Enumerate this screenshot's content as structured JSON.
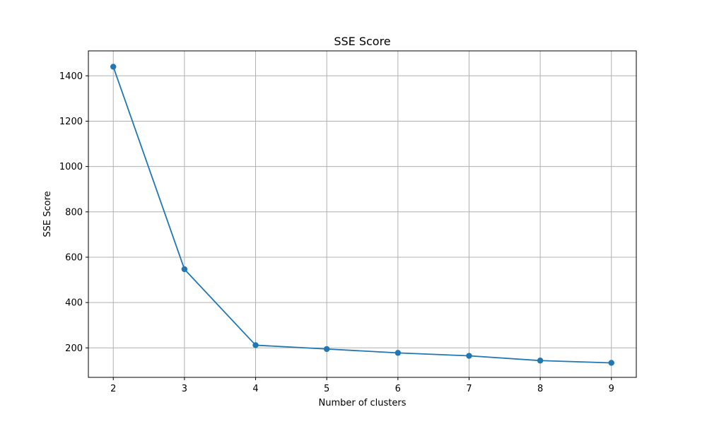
{
  "chart_data": {
    "type": "line",
    "title": "SSE Score",
    "xlabel": "Number of clusters",
    "ylabel": "SSE Score",
    "x": [
      2,
      3,
      4,
      5,
      6,
      7,
      8,
      9
    ],
    "series": [
      {
        "values": [
          1440,
          547,
          212,
          195,
          178,
          165,
          144,
          134
        ],
        "color": "#1f77b4",
        "marker": "circle"
      }
    ],
    "xlim": [
      1.65,
      9.35
    ],
    "ylim": [
      70,
      1510
    ],
    "xticks": [
      2,
      3,
      4,
      5,
      6,
      7,
      8,
      9
    ],
    "yticks": [
      200,
      400,
      600,
      800,
      1000,
      1200,
      1400
    ],
    "grid": true
  }
}
